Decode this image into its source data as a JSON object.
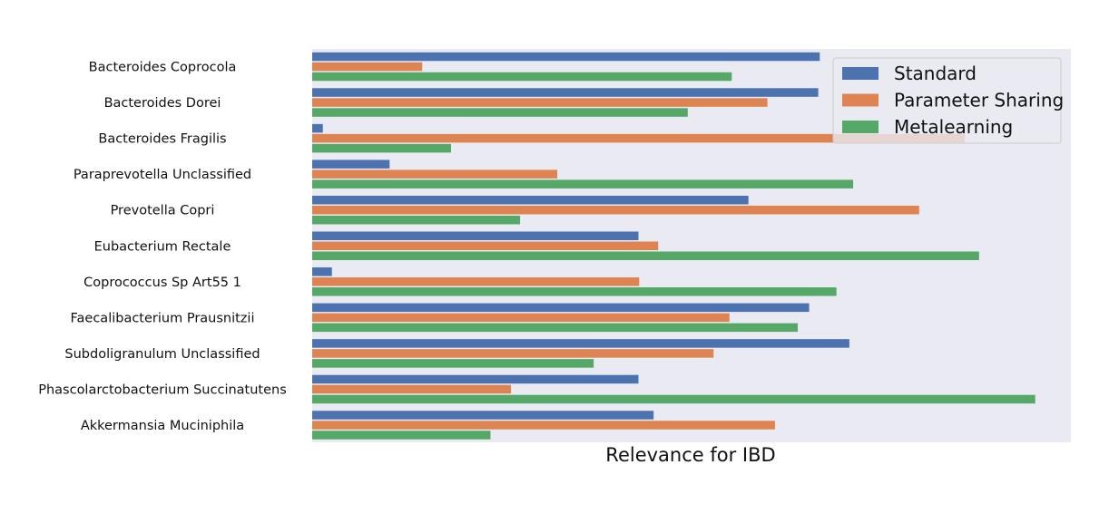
{
  "chart_data": {
    "type": "bar",
    "orientation": "horizontal",
    "xlabel": "Relevance for IBD",
    "ylabel": "",
    "xlim": [
      0,
      1
    ],
    "grid": false,
    "legend_position": "top-right",
    "categories": [
      "Bacteroides Coprocola",
      "Bacteroides Dorei",
      "Bacteroides Fragilis",
      "Paraprevotella Unclassified",
      "Prevotella Copri",
      "Eubacterium Rectale",
      "Coprococcus Sp Art55 1",
      "Faecalibacterium Prausnitzii",
      "Subdoligranulum Unclassified",
      "Phascolarctobacterium Succinatutens",
      "Akkermansia Muciniphila"
    ],
    "series": [
      {
        "name": "Standard",
        "color": "#4c72b0",
        "values": [
          0.669,
          0.667,
          0.014,
          0.102,
          0.575,
          0.43,
          0.026,
          0.655,
          0.708,
          0.43,
          0.45
        ]
      },
      {
        "name": "Parameter Sharing",
        "color": "#dd8452",
        "values": [
          0.145,
          0.6,
          0.86,
          0.323,
          0.8,
          0.456,
          0.431,
          0.55,
          0.529,
          0.262,
          0.61
        ]
      },
      {
        "name": "Metalearning",
        "color": "#55a868",
        "values": [
          0.553,
          0.495,
          0.183,
          0.713,
          0.274,
          0.879,
          0.691,
          0.64,
          0.371,
          0.953,
          0.235
        ]
      }
    ]
  }
}
